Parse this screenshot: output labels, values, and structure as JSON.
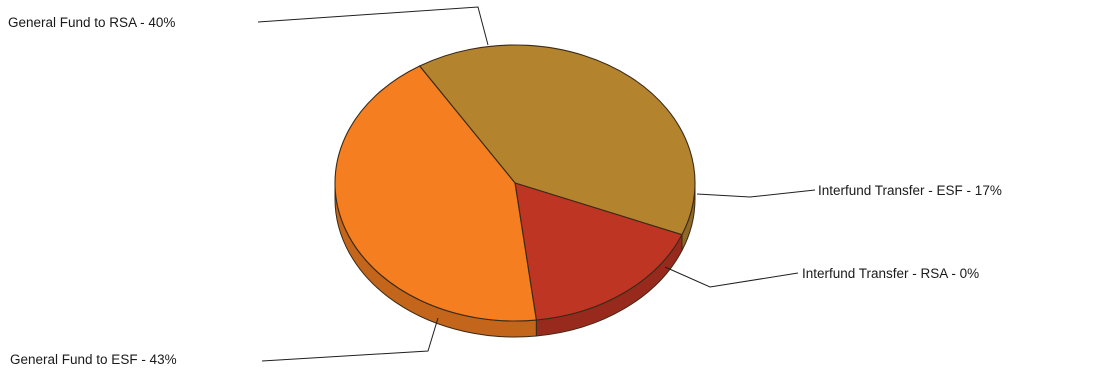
{
  "chart_data": {
    "type": "pie",
    "style": "3d",
    "series": [
      {
        "values": [
          {
            "label": "General Fund to RSA",
            "text": "General Fund to RSA - 40%",
            "value": 40,
            "color": "#B3832E"
          },
          {
            "label": "Interfund Transfer - ESF",
            "text": "Interfund Transfer - ESF - 17%",
            "value": 17,
            "color": "#BE3524"
          },
          {
            "label": "Interfund Transfer - RSA",
            "text": "Interfund Transfer - RSA - 0%",
            "value": 0,
            "color": "#A8442C"
          },
          {
            "label": "General Fund to ESF",
            "text": "General Fund to ESF - 43%",
            "value": 43,
            "color": "#F47E20"
          }
        ]
      }
    ],
    "legend": "none",
    "data_labels": "outside-with-leader-lines"
  }
}
